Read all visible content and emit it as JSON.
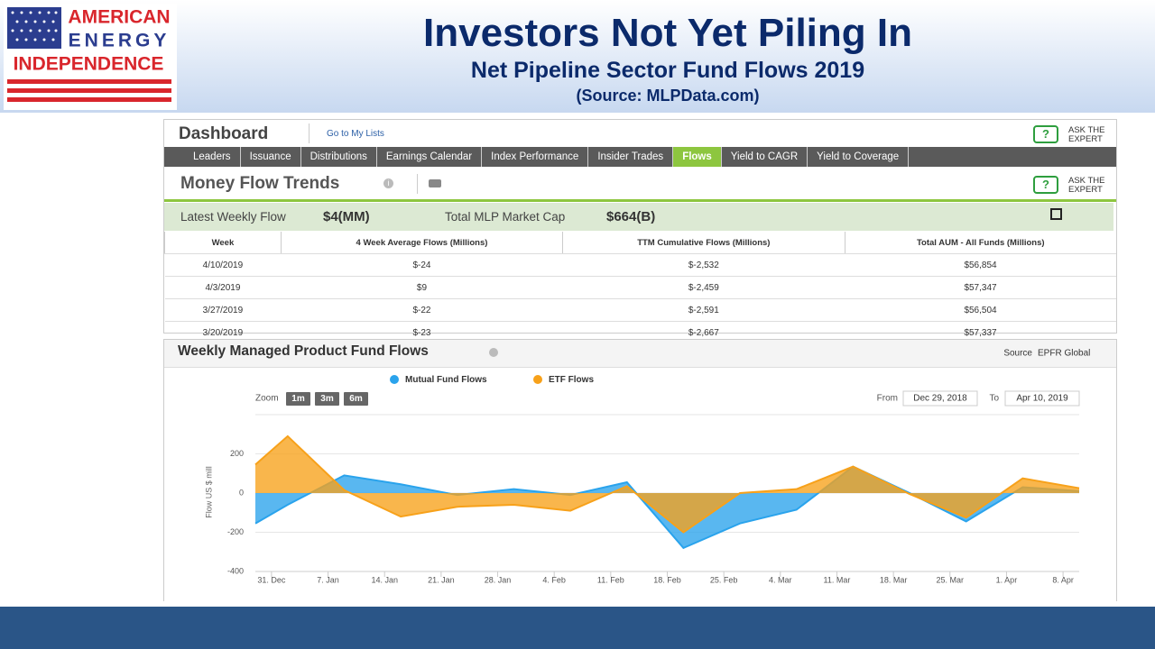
{
  "logo": {
    "lines": [
      "AMERICAN",
      "ENERGY",
      "INDEPENDENCE"
    ]
  },
  "header": {
    "title": "Investors Not Yet Piling In",
    "subtitle": "Net Pipeline Sector Fund Flows 2019",
    "source": "(Source: MLPData.com)"
  },
  "dashboard": {
    "title": "Dashboard",
    "link": "Go to My Lists",
    "ask": [
      "ASK THE",
      "EXPERT"
    ],
    "nav": [
      "Leaders",
      "Issuance",
      "Distributions",
      "Earnings Calendar",
      "Index Performance",
      "Insider Trades",
      "Flows",
      "Yield to CAGR",
      "Yield to Coverage"
    ],
    "nav_active": "Flows",
    "section": "Money Flow Trends",
    "summary": {
      "weekly_label": "Latest Weekly Flow",
      "weekly_value": "$4(MM)",
      "cap_label": "Total MLP Market Cap",
      "cap_value": "$664(B)"
    }
  },
  "table": {
    "columns": [
      "Week",
      "4 Week Average Flows (Millions)",
      "TTM Cumulative Flows (Millions)",
      "Total AUM - All Funds (Millions)"
    ],
    "rows": [
      [
        "4/10/2019",
        "$-24",
        "$-2,532",
        "$56,854"
      ],
      [
        "4/3/2019",
        "$9",
        "$-2,459",
        "$57,347"
      ],
      [
        "3/27/2019",
        "$-22",
        "$-2,591",
        "$56,504"
      ],
      [
        "3/20/2019",
        "$-23",
        "$-2,667",
        "$57,337"
      ]
    ]
  },
  "chart_data": {
    "type": "area",
    "title": "Weekly Managed Product Fund Flows",
    "source_label": "Source",
    "source": "EPFR Global",
    "zoom_label": "Zoom",
    "zoom": [
      "1m",
      "3m",
      "6m"
    ],
    "from_label": "From",
    "from": "Dec 29, 2018",
    "to_label": "To",
    "to": "Apr 10, 2019",
    "y_label": "Flow US $ mill",
    "x": [
      "2018-12-29",
      "2019-01-02",
      "2019-01-09",
      "2019-01-16",
      "2019-01-23",
      "2019-01-30",
      "2019-02-06",
      "2019-02-13",
      "2019-02-20",
      "2019-02-27",
      "2019-03-06",
      "2019-03-13",
      "2019-03-20",
      "2019-03-27",
      "2019-04-03",
      "2019-04-10"
    ],
    "series": [
      {
        "name": "Mutual Fund Flows",
        "color": "#2aa3ec",
        "values": [
          -155,
          -60,
          90,
          45,
          -10,
          20,
          -10,
          55,
          -280,
          -155,
          -85,
          135,
          0,
          -145,
          30,
          10
        ]
      },
      {
        "name": "ETF Flows",
        "color": "#f7a11a",
        "values": [
          145,
          290,
          15,
          -120,
          -70,
          -60,
          -90,
          35,
          -200,
          0,
          20,
          135,
          -5,
          -125,
          75,
          25
        ]
      }
    ],
    "xlim": [
      "2018-12-29",
      "2019-04-10"
    ],
    "xticks": [
      {
        "value": "2018-12-31",
        "label": "31. Dec"
      },
      {
        "value": "2019-01-07",
        "label": "7. Jan"
      },
      {
        "value": "2019-01-14",
        "label": "14. Jan"
      },
      {
        "value": "2019-01-21",
        "label": "21. Jan"
      },
      {
        "value": "2019-01-28",
        "label": "28. Jan"
      },
      {
        "value": "2019-02-04",
        "label": "4. Feb"
      },
      {
        "value": "2019-02-11",
        "label": "11. Feb"
      },
      {
        "value": "2019-02-18",
        "label": "18. Feb"
      },
      {
        "value": "2019-02-25",
        "label": "25. Feb"
      },
      {
        "value": "2019-03-04",
        "label": "4. Mar"
      },
      {
        "value": "2019-03-11",
        "label": "11. Mar"
      },
      {
        "value": "2019-03-18",
        "label": "18. Mar"
      },
      {
        "value": "2019-03-25",
        "label": "25. Mar"
      },
      {
        "value": "2019-04-01",
        "label": "1. Apr"
      },
      {
        "value": "2019-04-08",
        "label": "8. Apr"
      }
    ],
    "ylim": [
      -400,
      400
    ],
    "yticks": [
      -400,
      -200,
      0,
      200
    ],
    "grid": true
  }
}
